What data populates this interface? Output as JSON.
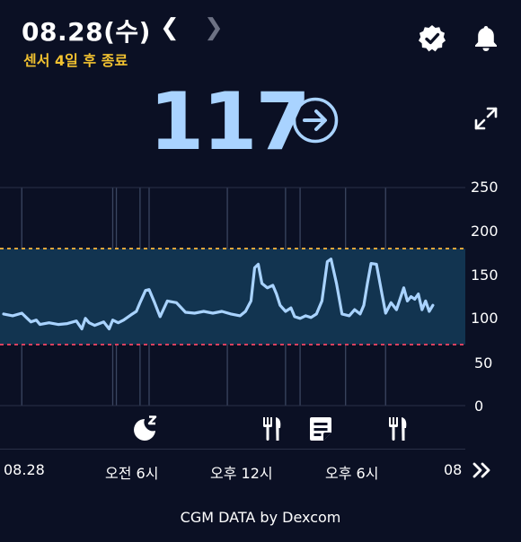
{
  "header": {
    "date": "08.28(수)",
    "sensor_status": "센서 4일 후 종료",
    "prev_icon": "chevron-left-icon",
    "next_icon": "chevron-right-icon",
    "verified_icon": "verified-badge-icon",
    "bell_icon": "bell-icon"
  },
  "current": {
    "value": "117",
    "trend_icon": "arrow-right-circle-icon",
    "expand_icon": "expand-icon"
  },
  "chart_data": {
    "type": "line",
    "title": "",
    "xlabel": "",
    "ylabel": "",
    "y_ticks": [
      "250",
      "200",
      "150",
      "100",
      "50",
      "0"
    ],
    "ylim": [
      0,
      250
    ],
    "xlim": [
      0,
      24.5
    ],
    "target_range": {
      "low": 70,
      "high": 180
    },
    "x_tick_labels": [
      {
        "x": 0,
        "label": "08.28"
      },
      {
        "x": 6,
        "label": "오전 6시"
      },
      {
        "x": 12,
        "label": "오후 12시"
      },
      {
        "x": 18,
        "label": "오후 6시"
      },
      {
        "x": 24,
        "label": "08."
      }
    ],
    "series": [
      {
        "x": [
          0,
          0.5,
          1,
          1.3,
          1.5,
          1.8,
          2,
          2.5,
          3,
          3.5,
          4,
          4.3,
          4.5,
          4.7,
          5,
          5.5,
          5.8,
          6,
          6.3,
          6.6,
          7,
          7.3,
          7.5,
          7.8,
          8,
          8.3,
          8.6,
          9,
          9.5,
          10,
          10.5,
          11,
          11.5,
          12,
          12.5,
          13,
          13.3,
          13.6,
          13.8,
          14,
          14.2,
          14.5,
          14.8,
          15,
          15.2,
          15.5,
          15.8,
          16,
          16.3,
          16.6,
          16.9,
          17.2,
          17.5,
          17.8,
          18,
          18.3,
          18.6,
          19,
          19.3,
          19.6,
          19.8,
          20,
          20.2,
          20.5,
          20.8,
          21,
          21.3,
          21.6,
          22,
          22.2,
          22.4,
          22.6,
          22.8,
          23,
          23.2,
          23.4,
          23.6
        ],
        "y": [
          105,
          103,
          106,
          100,
          96,
          98,
          93,
          95,
          93,
          94,
          97,
          88,
          100,
          95,
          92,
          96,
          88,
          98,
          95,
          98,
          104,
          108,
          118,
          132,
          133,
          118,
          102,
          120,
          118,
          107,
          106,
          108,
          106,
          108,
          105,
          103,
          108,
          120,
          158,
          162,
          140,
          135,
          138,
          128,
          115,
          108,
          112,
          102,
          100,
          103,
          101,
          105,
          120,
          165,
          168,
          140,
          105,
          103,
          110,
          105,
          115,
          140,
          163,
          162,
          128,
          106,
          118,
          110,
          135,
          120,
          125,
          122,
          128,
          110,
          120,
          108,
          115
        ]
      }
    ]
  },
  "events": [
    {
      "icon": "sleep-moon-icon",
      "x": 6.3
    },
    {
      "icon": "meal-icon",
      "x": 12.2
    },
    {
      "icon": "note-icon",
      "x": 14.6
    },
    {
      "icon": "meal-icon",
      "x": 17.9
    }
  ],
  "footer": {
    "text": "CGM DATA by Dexcom"
  },
  "more_icon": "double-chevron-right-icon"
}
